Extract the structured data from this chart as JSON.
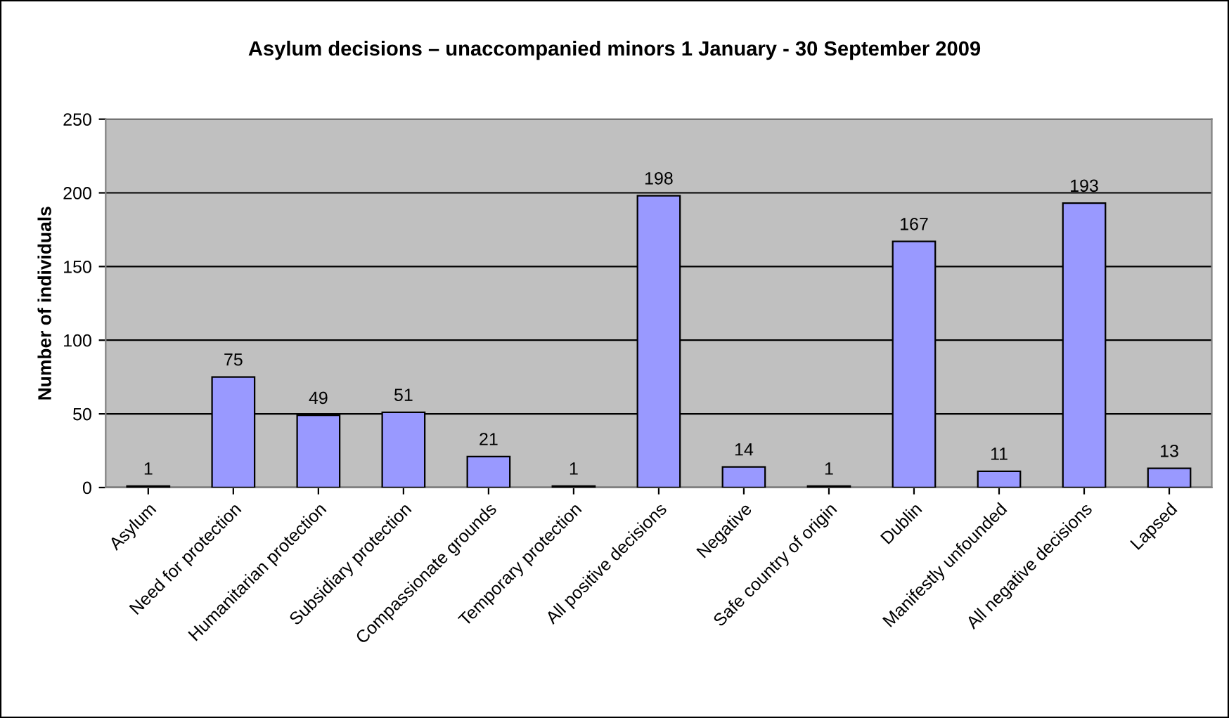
{
  "chart_data": {
    "type": "bar",
    "title": "Asylum decisions – unaccompanied minors 1 January - 30 September 2009",
    "ylabel": "Number of individuals",
    "categories": [
      "Asylum",
      "Need for protection",
      "Humanitarian protection",
      "Subsidiary protection",
      "Compassionate grounds",
      "Temporary protection",
      "All positive decisions",
      "Negative",
      "Safe country of origin",
      "Dublin",
      "Manifestly unfounded",
      "All negative decisions",
      "Lapsed"
    ],
    "values": [
      1,
      75,
      49,
      51,
      21,
      1,
      198,
      14,
      1,
      167,
      11,
      193,
      13
    ],
    "color": "#9999ff",
    "ylim": [
      0,
      250
    ],
    "yticks": [
      0,
      50,
      100,
      150,
      200,
      250
    ],
    "grid": "y",
    "data_labels": true
  }
}
